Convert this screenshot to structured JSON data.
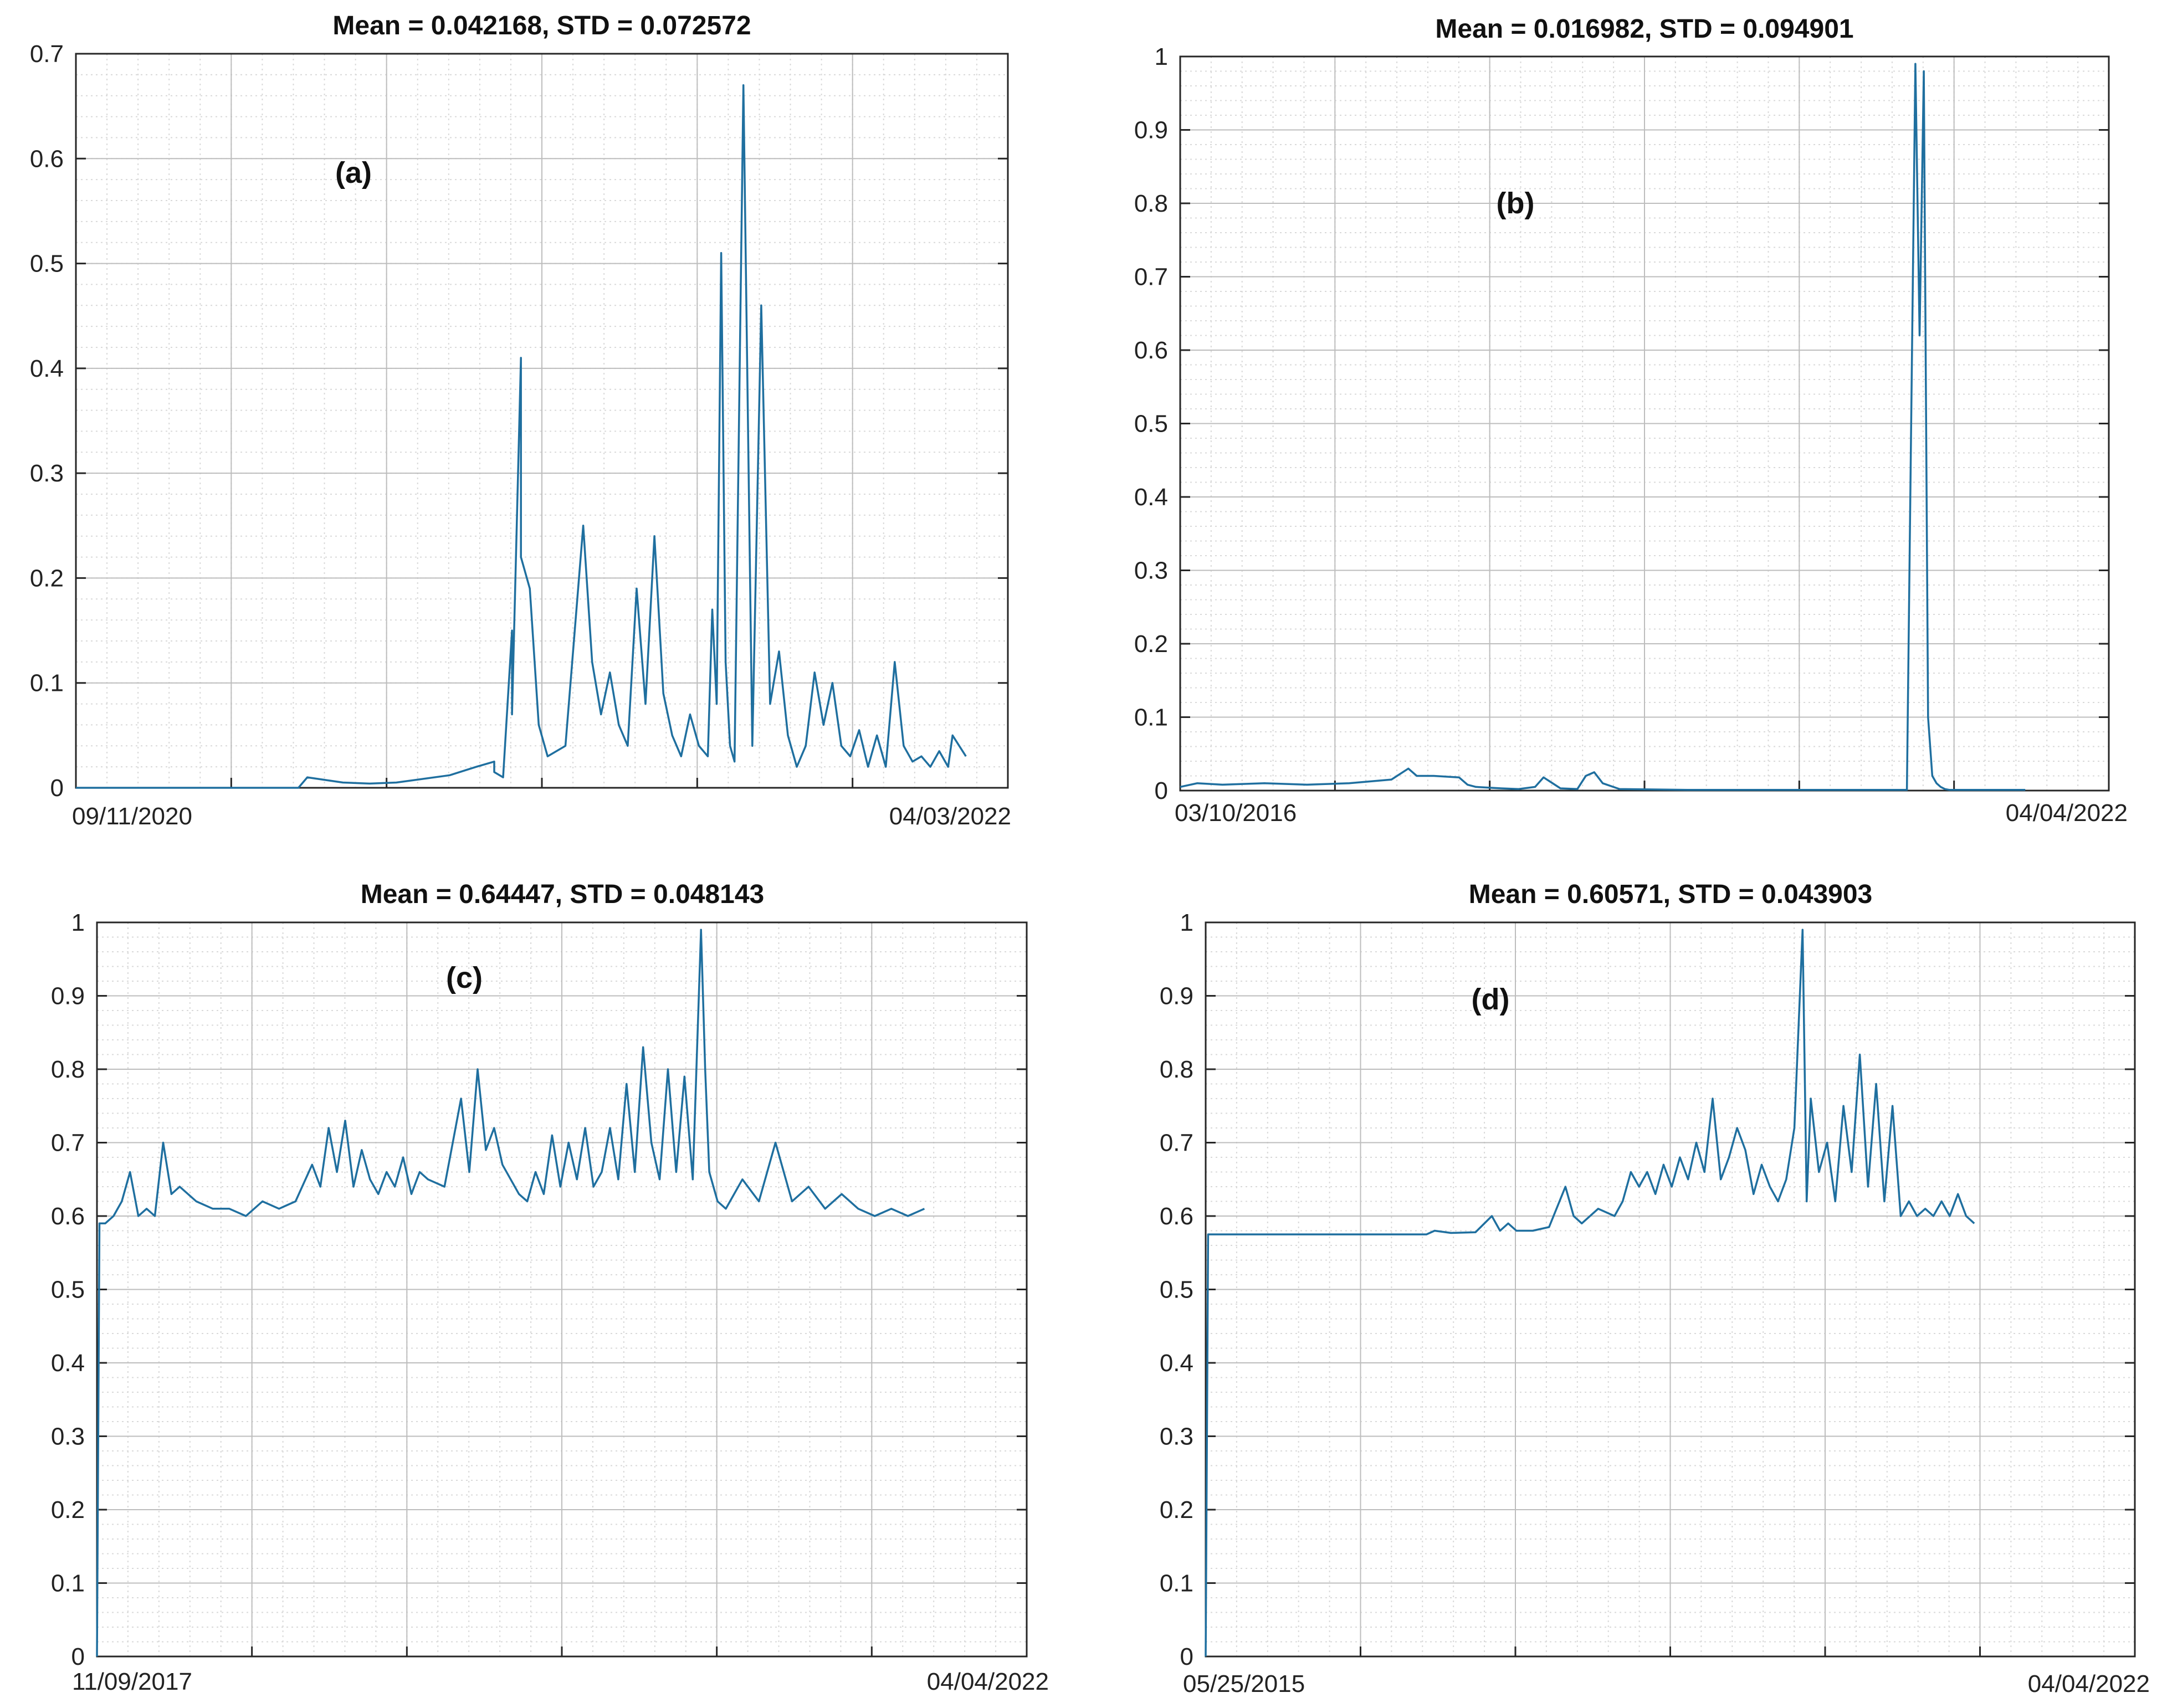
{
  "chart_data": [
    {
      "type": "line",
      "title": "Mean = 0.042168, STD = 0.072572",
      "panel_label": "(a)",
      "x_start_label": "09/11/2020",
      "x_end_label": "04/03/2022",
      "ylim": [
        0,
        0.7
      ],
      "yticks": [
        "0",
        "0.1",
        "0.2",
        "0.3",
        "0.4",
        "0.5",
        "0.6",
        "0.7"
      ],
      "grid": true,
      "color": "#1f6f9f",
      "series": [
        {
          "x": [
            0,
            0.25,
            0.26,
            0.3,
            0.33,
            0.36,
            0.36,
            0.42,
            0.45,
            0.47,
            0.47,
            0.48,
            0.49,
            0.49,
            0.5,
            0.5,
            0.51,
            0.52,
            0.53,
            0.55,
            0.57,
            0.58,
            0.59,
            0.6,
            0.61,
            0.62,
            0.63,
            0.64,
            0.65,
            0.66,
            0.67,
            0.68,
            0.69,
            0.7,
            0.71,
            0.715,
            0.72,
            0.725,
            0.73,
            0.735,
            0.74,
            0.75,
            0.76,
            0.77,
            0.78,
            0.79,
            0.8,
            0.81,
            0.82,
            0.83,
            0.84,
            0.85,
            0.86,
            0.87,
            0.88,
            0.89,
            0.9,
            0.91,
            0.92,
            0.93,
            0.94,
            0.95,
            0.96,
            0.97,
            0.98,
            0.985,
            1.0
          ],
          "y": [
            0,
            0,
            0.01,
            0.005,
            0.004,
            0.005,
            0.005,
            0.012,
            0.02,
            0.025,
            0.015,
            0.01,
            0.15,
            0.07,
            0.41,
            0.22,
            0.19,
            0.06,
            0.03,
            0.04,
            0.25,
            0.12,
            0.07,
            0.11,
            0.06,
            0.04,
            0.19,
            0.08,
            0.24,
            0.09,
            0.05,
            0.03,
            0.07,
            0.04,
            0.03,
            0.17,
            0.08,
            0.51,
            0.12,
            0.04,
            0.025,
            0.67,
            0.04,
            0.46,
            0.08,
            0.13,
            0.05,
            0.02,
            0.04,
            0.11,
            0.06,
            0.1,
            0.04,
            0.03,
            0.055,
            0.02,
            0.05,
            0.02,
            0.12,
            0.04,
            0.025,
            0.03,
            0.02,
            0.035,
            0.02,
            0.05,
            0.03
          ],
          "x_extent": 0.955
        }
      ]
    },
    {
      "type": "line",
      "title": "Mean = 0.016982, STD = 0.094901",
      "panel_label": "(b)",
      "x_start_label": "03/10/2016",
      "x_end_label": "04/04/2022",
      "ylim": [
        0,
        1
      ],
      "yticks": [
        "0",
        "0.1",
        "0.2",
        "0.3",
        "0.4",
        "0.5",
        "0.6",
        "0.7",
        "0.8",
        "0.9",
        "1"
      ],
      "grid": true,
      "color": "#1f6f9f",
      "series": [
        {
          "x": [
            0,
            0.02,
            0.05,
            0.1,
            0.15,
            0.2,
            0.25,
            0.27,
            0.28,
            0.3,
            0.33,
            0.34,
            0.35,
            0.38,
            0.4,
            0.42,
            0.43,
            0.45,
            0.47,
            0.48,
            0.49,
            0.5,
            0.52,
            0.6,
            0.7,
            0.8,
            0.86,
            0.865,
            0.87,
            0.875,
            0.88,
            0.885,
            0.89,
            0.895,
            0.9,
            0.905,
            0.91,
            1.0
          ],
          "y": [
            0.005,
            0.01,
            0.008,
            0.01,
            0.008,
            0.01,
            0.015,
            0.03,
            0.02,
            0.02,
            0.018,
            0.008,
            0.005,
            0.003,
            0.002,
            0.005,
            0.018,
            0.003,
            0.002,
            0.02,
            0.025,
            0.01,
            0.002,
            0.001,
            0.001,
            0.001,
            0.001,
            0.5,
            0.99,
            0.62,
            0.98,
            0.1,
            0.02,
            0.01,
            0.005,
            0.002,
            0.001,
            0.001
          ],
          "x_extent": 0.91
        }
      ]
    },
    {
      "type": "line",
      "title": "Mean = 0.64447, STD = 0.048143",
      "panel_label": "(c)",
      "x_start_label": "11/09/2017",
      "x_end_label": "04/04/2022",
      "ylim": [
        0,
        1
      ],
      "yticks": [
        "0",
        "0.1",
        "0.2",
        "0.3",
        "0.4",
        "0.5",
        "0.6",
        "0.7",
        "0.8",
        "0.9",
        "1"
      ],
      "grid": true,
      "color": "#1f6f9f",
      "series": [
        {
          "x": [
            0,
            0.003,
            0.01,
            0.02,
            0.03,
            0.04,
            0.05,
            0.06,
            0.07,
            0.08,
            0.09,
            0.1,
            0.12,
            0.14,
            0.16,
            0.18,
            0.2,
            0.22,
            0.24,
            0.26,
            0.27,
            0.28,
            0.29,
            0.3,
            0.31,
            0.32,
            0.33,
            0.34,
            0.35,
            0.36,
            0.37,
            0.38,
            0.39,
            0.4,
            0.42,
            0.44,
            0.45,
            0.46,
            0.47,
            0.48,
            0.49,
            0.5,
            0.51,
            0.52,
            0.53,
            0.54,
            0.55,
            0.56,
            0.57,
            0.58,
            0.59,
            0.6,
            0.61,
            0.62,
            0.63,
            0.64,
            0.65,
            0.66,
            0.67,
            0.68,
            0.69,
            0.7,
            0.71,
            0.72,
            0.73,
            0.735,
            0.74,
            0.745,
            0.75,
            0.76,
            0.78,
            0.8,
            0.82,
            0.84,
            0.86,
            0.88,
            0.9,
            0.92,
            0.94,
            0.96,
            0.98,
            1.0
          ],
          "y": [
            0,
            0.59,
            0.59,
            0.6,
            0.62,
            0.66,
            0.6,
            0.61,
            0.6,
            0.7,
            0.63,
            0.64,
            0.62,
            0.61,
            0.61,
            0.6,
            0.62,
            0.61,
            0.62,
            0.67,
            0.64,
            0.72,
            0.66,
            0.73,
            0.64,
            0.69,
            0.65,
            0.63,
            0.66,
            0.64,
            0.68,
            0.63,
            0.66,
            0.65,
            0.64,
            0.76,
            0.66,
            0.8,
            0.69,
            0.72,
            0.67,
            0.65,
            0.63,
            0.62,
            0.66,
            0.63,
            0.71,
            0.64,
            0.7,
            0.65,
            0.72,
            0.64,
            0.66,
            0.72,
            0.65,
            0.78,
            0.66,
            0.83,
            0.7,
            0.65,
            0.8,
            0.66,
            0.79,
            0.65,
            0.99,
            0.8,
            0.66,
            0.64,
            0.62,
            0.61,
            0.65,
            0.62,
            0.7,
            0.62,
            0.64,
            0.61,
            0.63,
            0.61,
            0.6,
            0.61,
            0.6,
            0.61
          ],
          "x_extent": 0.89
        }
      ]
    },
    {
      "type": "line",
      "title": "Mean = 0.60571, STD = 0.043903",
      "panel_label": "(d)",
      "x_start_label": "05/25/2015",
      "x_end_label": "04/04/2022",
      "ylim": [
        0,
        1
      ],
      "yticks": [
        "0",
        "0.1",
        "0.2",
        "0.3",
        "0.4",
        "0.5",
        "0.6",
        "0.7",
        "0.8",
        "0.9",
        "1"
      ],
      "grid": true,
      "color": "#1f6f9f",
      "series": [
        {
          "x": [
            0,
            0.003,
            0.1,
            0.2,
            0.27,
            0.28,
            0.3,
            0.33,
            0.35,
            0.36,
            0.37,
            0.38,
            0.4,
            0.42,
            0.44,
            0.45,
            0.46,
            0.48,
            0.5,
            0.51,
            0.52,
            0.53,
            0.54,
            0.55,
            0.56,
            0.57,
            0.58,
            0.59,
            0.6,
            0.61,
            0.62,
            0.63,
            0.64,
            0.65,
            0.66,
            0.67,
            0.68,
            0.69,
            0.7,
            0.71,
            0.72,
            0.73,
            0.735,
            0.74,
            0.75,
            0.76,
            0.77,
            0.78,
            0.79,
            0.8,
            0.81,
            0.82,
            0.83,
            0.84,
            0.85,
            0.86,
            0.87,
            0.88,
            0.89,
            0.9,
            0.91,
            0.92,
            0.93,
            0.94
          ],
          "y": [
            0,
            0.575,
            0.575,
            0.575,
            0.575,
            0.58,
            0.577,
            0.578,
            0.6,
            0.58,
            0.59,
            0.58,
            0.58,
            0.585,
            0.64,
            0.6,
            0.59,
            0.61,
            0.6,
            0.62,
            0.66,
            0.64,
            0.66,
            0.63,
            0.67,
            0.64,
            0.68,
            0.65,
            0.7,
            0.66,
            0.76,
            0.65,
            0.68,
            0.72,
            0.69,
            0.63,
            0.67,
            0.64,
            0.62,
            0.65,
            0.72,
            0.99,
            0.62,
            0.76,
            0.66,
            0.7,
            0.62,
            0.75,
            0.66,
            0.82,
            0.64,
            0.78,
            0.62,
            0.75,
            0.6,
            0.62,
            0.6,
            0.61,
            0.6,
            0.62,
            0.6,
            0.63,
            0.6,
            0.59
          ],
          "x_extent": 0.88
        }
      ]
    }
  ]
}
